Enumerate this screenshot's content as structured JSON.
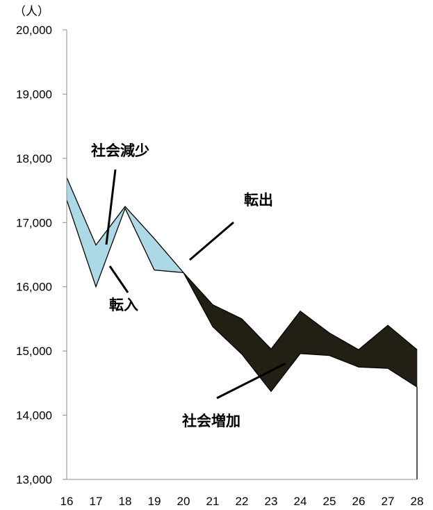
{
  "chart_data": {
    "type": "area",
    "unit_label": "（人）",
    "x": [
      "16",
      "17",
      "18",
      "19",
      "20",
      "21",
      "22",
      "23",
      "24",
      "25",
      "26",
      "27",
      "28"
    ],
    "ylim": [
      13000,
      20000
    ],
    "yticks": [
      13000,
      14000,
      15000,
      16000,
      17000,
      18000,
      19000,
      20000
    ],
    "ytick_labels": [
      "13,000",
      "14,000",
      "15,000",
      "16,000",
      "17,000",
      "18,000",
      "19,000",
      "20,000"
    ],
    "grid": false,
    "series": [
      {
        "values": [
          17700,
          16650,
          17250,
          16750,
          16220,
          15720,
          15500,
          15030,
          15620,
          15280,
          15020,
          15400,
          15020
        ]
      },
      {
        "values": [
          17350,
          16000,
          17220,
          16260,
          16220,
          15380,
          14950,
          14370,
          14960,
          14930,
          14750,
          14730,
          14440
        ]
      }
    ],
    "fills": {
      "decrease": "#add8e6",
      "increase": "#231f14"
    },
    "annotations": [
      "社会減少",
      "転入",
      "転出",
      "社会増加"
    ]
  }
}
